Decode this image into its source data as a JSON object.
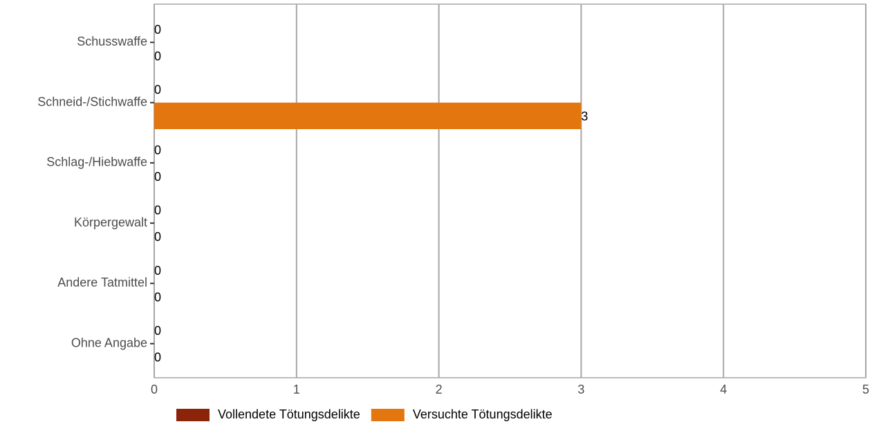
{
  "chart_data": {
    "type": "bar",
    "orientation": "horizontal",
    "categories": [
      "Schusswaffe",
      "Schneid-/Stichwaffe",
      "Schlag-/Hiebwaffe",
      "Körpergewalt",
      "Andere Tatmittel",
      "Ohne Angabe"
    ],
    "series": [
      {
        "name": "Vollendete Tötungsdelikte",
        "color": "#8b2409",
        "values": [
          0,
          0,
          0,
          0,
          0,
          0
        ]
      },
      {
        "name": "Versuchte Tötungsdelikte",
        "color": "#e3760f",
        "values": [
          0,
          3,
          0,
          0,
          0,
          0
        ]
      }
    ],
    "xlim": [
      0,
      5
    ],
    "xticks": [
      0,
      1,
      2,
      3,
      4,
      5
    ],
    "grid": true,
    "legend": "bottom"
  }
}
